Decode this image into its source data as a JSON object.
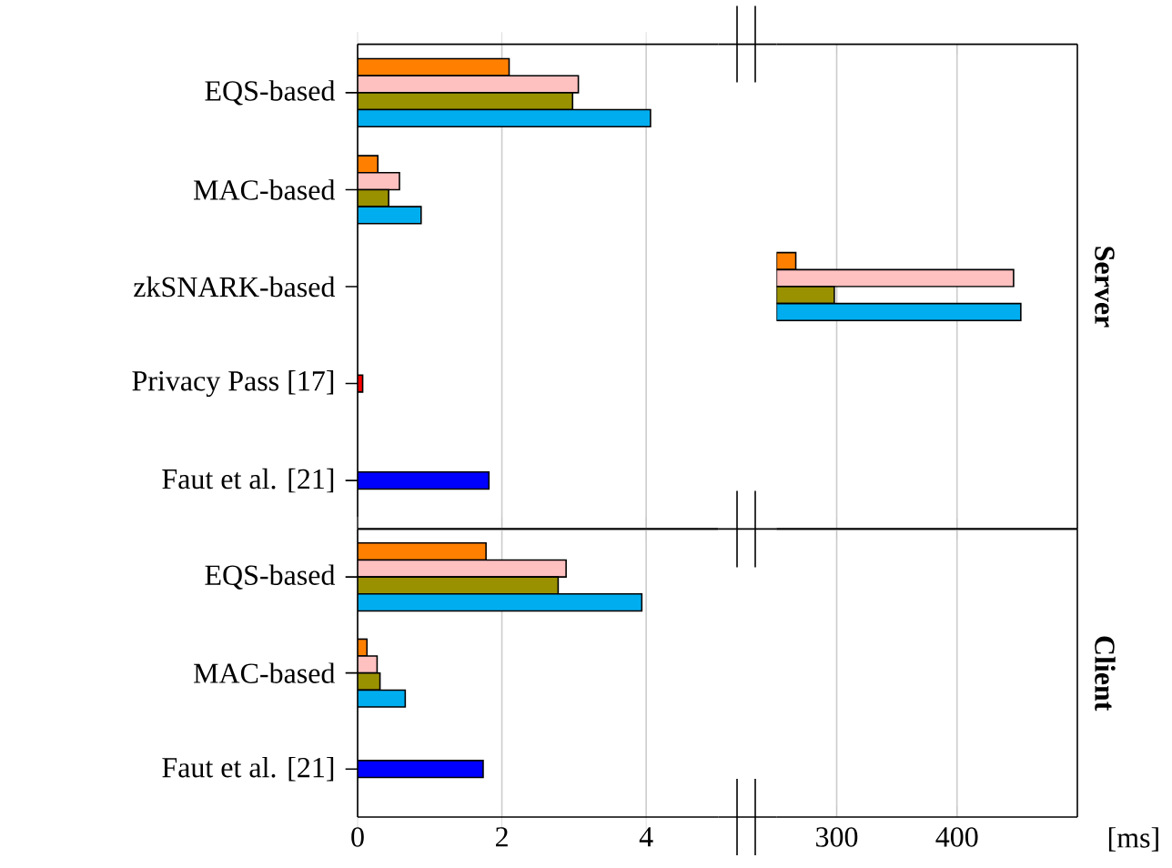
{
  "chart_data": [
    {
      "type": "bar",
      "orientation": "horizontal",
      "categories": [
        "EQS-based",
        "MAC-based",
        "zkSNARK-based",
        "Privacy Pass [17]",
        "Faut et al. [21]"
      ],
      "series": [
        {
          "color": "#ff8000",
          "values": [
            2.1,
            0.28,
            null,
            null,
            null
          ]
        },
        {
          "color": "#ffc0c0",
          "values": [
            3.06,
            0.58,
            null,
            null,
            null
          ]
        },
        {
          "color": "#999100",
          "values": [
            2.98,
            0.43,
            null,
            null,
            null
          ]
        },
        {
          "color": "#00aeef",
          "values": [
            4.06,
            0.88,
            null,
            null,
            null
          ]
        },
        {
          "color": "#ff0000",
          "values": [
            null,
            null,
            null,
            0.07,
            null
          ]
        },
        {
          "color": "#0000ff",
          "values": [
            null,
            null,
            null,
            null,
            1.82
          ]
        }
      ],
      "xlim": [
        0,
        5
      ],
      "xticks": [
        0,
        2,
        4
      ],
      "grid": "x",
      "tick_labels": "y"
    },
    {
      "type": "bar",
      "orientation": "horizontal",
      "series": [
        {
          "color": "#ff8000",
          "values": [
            null,
            null,
            266,
            null,
            null
          ]
        },
        {
          "color": "#ffc0c0",
          "values": [
            null,
            null,
            447,
            null,
            null
          ]
        },
        {
          "color": "#999100",
          "values": [
            null,
            null,
            298,
            null,
            null
          ]
        },
        {
          "color": "#00aeef",
          "values": [
            null,
            null,
            453,
            null,
            null
          ]
        }
      ],
      "xlim": [
        250,
        500
      ],
      "xticks": [
        300,
        400
      ],
      "grid": "x",
      "tick_labels": false,
      "ylabel": "Server"
    },
    {
      "type": "bar",
      "orientation": "horizontal",
      "categories": [
        "EQS-based",
        "MAC-based",
        "Faut et al. [21]"
      ],
      "series": [
        {
          "color": "#ff8000",
          "values": [
            1.78,
            0.13,
            null
          ]
        },
        {
          "color": "#ffc0c0",
          "values": [
            2.89,
            0.27,
            null
          ]
        },
        {
          "color": "#999100",
          "values": [
            2.78,
            0.31,
            null
          ]
        },
        {
          "color": "#00aeef",
          "values": [
            3.94,
            0.66,
            null
          ]
        },
        {
          "color": "#0000ff",
          "values": [
            null,
            null,
            1.74
          ]
        }
      ],
      "xlim": [
        0,
        5
      ],
      "xticks": [
        0,
        2,
        4
      ],
      "grid": "x"
    },
    {
      "type": "bar",
      "orientation": "horizontal",
      "values": [
        null,
        null,
        null
      ],
      "xlim": [
        250,
        500
      ],
      "xticks": [
        300,
        400
      ],
      "grid": "x",
      "tick_labels": "x",
      "ylabel": "Client",
      "xlabel": "[ms]"
    }
  ]
}
